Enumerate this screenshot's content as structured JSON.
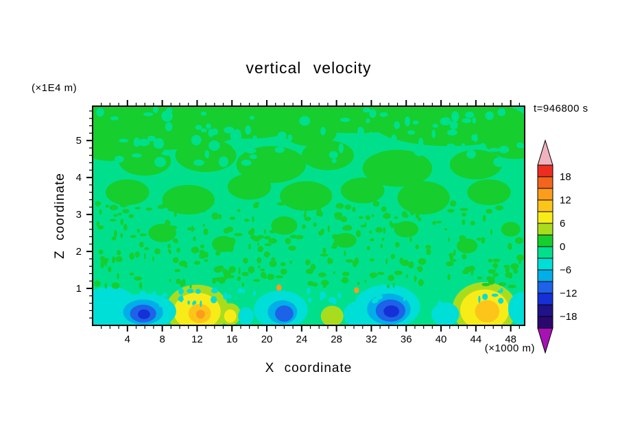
{
  "chart_data": {
    "type": "heatmap",
    "title": "vertical velocity",
    "xlabel": "X coordinate",
    "ylabel": "Z coordinate",
    "x_unit_label": "(×1000 m)",
    "y_unit_label": "(×1E4 m)",
    "time_annotation": "t=946800 s",
    "xlim": [
      0,
      49.6
    ],
    "ylim": [
      0,
      5.93
    ],
    "grid": false,
    "x_ticks": [
      4,
      8,
      12,
      16,
      20,
      24,
      28,
      32,
      36,
      40,
      44,
      48
    ],
    "y_ticks": [
      1,
      2,
      3,
      4,
      5
    ],
    "x_minor_step": 1,
    "y_minor_step": 0.2,
    "colorbar": {
      "position": "right",
      "over": {
        "min": 21,
        "color": "#F0B2BE"
      },
      "under": {
        "max": -21,
        "color": "#A812B4"
      },
      "bands": [
        {
          "max": 21,
          "min": 18,
          "color": "#ED2D21",
          "label_at_min": "18"
        },
        {
          "max": 18,
          "min": 15,
          "color": "#F3641D"
        },
        {
          "max": 15,
          "min": 12,
          "color": "#FB9C1C",
          "label_at_min": "12"
        },
        {
          "max": 12,
          "min": 9,
          "color": "#FDC41A"
        },
        {
          "max": 9,
          "min": 6,
          "color": "#F8EC18",
          "label_at_min": "6"
        },
        {
          "max": 6,
          "min": 3,
          "color": "#AADC1E"
        },
        {
          "max": 3,
          "min": 0,
          "color": "#16CE2E",
          "label_at_min": "0"
        },
        {
          "max": 0,
          "min": -3,
          "color": "#00E08C"
        },
        {
          "max": -3,
          "min": -6,
          "color": "#00DED8",
          "label_at_min": "−6"
        },
        {
          "max": -6,
          "min": -9,
          "color": "#00AEE8"
        },
        {
          "max": -9,
          "min": -12,
          "color": "#1E62E8",
          "label_at_min": "−12"
        },
        {
          "max": -12,
          "min": -15,
          "color": "#1430D6"
        },
        {
          "max": -15,
          "min": -18,
          "color": "#201288",
          "label_at_min": "−18"
        },
        {
          "max": -18,
          "min": -21,
          "color": "#2A0870"
        }
      ]
    },
    "field": {
      "background_value": -1.5,
      "features": [
        {
          "x": 8,
          "y": 5.5,
          "rx": 10,
          "ry": 0.75,
          "value": 1.5
        },
        {
          "x": 2,
          "y": 5.0,
          "rx": 4,
          "ry": 0.55,
          "value": 1.5
        },
        {
          "x": 18,
          "y": 5.55,
          "rx": 6,
          "ry": 0.5,
          "value": 1.5
        },
        {
          "x": 30,
          "y": 5.75,
          "rx": 9,
          "ry": 0.55,
          "value": 1.5
        },
        {
          "x": 41,
          "y": 5.5,
          "rx": 9,
          "ry": 0.65,
          "value": 1.5
        },
        {
          "x": 48.5,
          "y": 5.0,
          "rx": 3.5,
          "ry": 0.5,
          "value": 1.5
        },
        {
          "x": 25,
          "y": 5.2,
          "rx": 3,
          "ry": 0.35,
          "value": 1.5
        },
        {
          "x": 6,
          "y": 4.45,
          "rx": 3,
          "ry": 0.4,
          "value": 1.5
        },
        {
          "x": 13,
          "y": 4.6,
          "rx": 3.5,
          "ry": 0.45,
          "value": 1.5
        },
        {
          "x": 20.5,
          "y": 4.35,
          "rx": 4,
          "ry": 0.5,
          "value": 1.5
        },
        {
          "x": 27,
          "y": 4.6,
          "rx": 3,
          "ry": 0.4,
          "value": 1.5
        },
        {
          "x": 35,
          "y": 4.25,
          "rx": 4,
          "ry": 0.5,
          "value": 1.5
        },
        {
          "x": 44,
          "y": 4.35,
          "rx": 3,
          "ry": 0.4,
          "value": 1.5
        },
        {
          "x": 4,
          "y": 3.6,
          "rx": 2.5,
          "ry": 0.35,
          "value": 1.5
        },
        {
          "x": 11,
          "y": 3.4,
          "rx": 3,
          "ry": 0.4,
          "value": 1.5
        },
        {
          "x": 18,
          "y": 3.75,
          "rx": 2.5,
          "ry": 0.35,
          "value": 1.5
        },
        {
          "x": 24.5,
          "y": 3.5,
          "rx": 3,
          "ry": 0.4,
          "value": 1.5
        },
        {
          "x": 31,
          "y": 3.65,
          "rx": 2.5,
          "ry": 0.35,
          "value": 1.5
        },
        {
          "x": 38,
          "y": 3.45,
          "rx": 3,
          "ry": 0.45,
          "value": 1.5
        },
        {
          "x": 45.5,
          "y": 3.6,
          "rx": 2.5,
          "ry": 0.35,
          "value": 1.5
        },
        {
          "x": 8,
          "y": 2.5,
          "rx": 1.6,
          "ry": 0.25,
          "value": 1.5
        },
        {
          "x": 15,
          "y": 2.2,
          "rx": 1.3,
          "ry": 0.22,
          "value": 1.5
        },
        {
          "x": 22,
          "y": 2.7,
          "rx": 1.5,
          "ry": 0.25,
          "value": 1.5
        },
        {
          "x": 29,
          "y": 2.3,
          "rx": 1.3,
          "ry": 0.2,
          "value": 1.5
        },
        {
          "x": 36,
          "y": 2.6,
          "rx": 1.4,
          "ry": 0.22,
          "value": 1.5
        },
        {
          "x": 43,
          "y": 2.15,
          "rx": 1.2,
          "ry": 0.2,
          "value": 1.5
        },
        {
          "x": 48,
          "y": 2.6,
          "rx": 1.1,
          "ry": 0.2,
          "value": 1.5
        },
        {
          "x": 12,
          "y": 0.42,
          "rx": 3.6,
          "ry": 0.68,
          "value": 4.5
        },
        {
          "x": 45,
          "y": 0.45,
          "rx": 3.7,
          "ry": 0.72,
          "value": 4.5
        },
        {
          "x": 27.5,
          "y": 0.25,
          "rx": 1.3,
          "ry": 0.28,
          "value": 4.5
        },
        {
          "x": 15.8,
          "y": 0.3,
          "rx": 1.2,
          "ry": 0.3,
          "value": 4.5
        },
        {
          "x": 12,
          "y": 0.38,
          "rx": 2.7,
          "ry": 0.5,
          "value": 7.5
        },
        {
          "x": 45,
          "y": 0.42,
          "rx": 2.8,
          "ry": 0.55,
          "value": 7.5
        },
        {
          "x": 15.8,
          "y": 0.25,
          "rx": 0.7,
          "ry": 0.18,
          "value": 7.5
        },
        {
          "x": 12.3,
          "y": 0.32,
          "rx": 1.3,
          "ry": 0.26,
          "value": 10.5
        },
        {
          "x": 45.3,
          "y": 0.38,
          "rx": 1.4,
          "ry": 0.3,
          "value": 10.5
        },
        {
          "x": 21.4,
          "y": 1.02,
          "rx": 0.3,
          "ry": 0.09,
          "value": 13.5
        },
        {
          "x": 30.3,
          "y": 0.95,
          "rx": 0.28,
          "ry": 0.08,
          "value": 13.5
        },
        {
          "x": 12.4,
          "y": 0.3,
          "rx": 0.5,
          "ry": 0.12,
          "value": 13.5
        },
        {
          "x": 2,
          "y": 0.5,
          "rx": 3.2,
          "ry": 0.55,
          "value": -4.5
        },
        {
          "x": 6,
          "y": 0.38,
          "rx": 3.6,
          "ry": 0.48,
          "value": -4.5
        },
        {
          "x": 21.6,
          "y": 0.42,
          "rx": 3.1,
          "ry": 0.52,
          "value": -4.5
        },
        {
          "x": 33.8,
          "y": 0.5,
          "rx": 3.8,
          "ry": 0.6,
          "value": -4.5
        },
        {
          "x": 30.6,
          "y": 0.3,
          "rx": 1.8,
          "ry": 0.35,
          "value": -4.5
        },
        {
          "x": 40.5,
          "y": 0.3,
          "rx": 1.6,
          "ry": 0.32,
          "value": -4.5
        },
        {
          "x": 49.3,
          "y": 0.45,
          "rx": 1.6,
          "ry": 0.45,
          "value": -4.5
        },
        {
          "x": 17.6,
          "y": 0.25,
          "rx": 0.9,
          "ry": 0.24,
          "value": -4.5
        },
        {
          "x": 5.8,
          "y": 0.36,
          "rx": 2.3,
          "ry": 0.34,
          "value": -7.5
        },
        {
          "x": 21.8,
          "y": 0.36,
          "rx": 1.7,
          "ry": 0.32,
          "value": -7.5
        },
        {
          "x": 34,
          "y": 0.44,
          "rx": 2.5,
          "ry": 0.42,
          "value": -7.5
        },
        {
          "x": 5.8,
          "y": 0.32,
          "rx": 1.5,
          "ry": 0.24,
          "value": -10.5
        },
        {
          "x": 22,
          "y": 0.32,
          "rx": 1.05,
          "ry": 0.22,
          "value": -10.5
        },
        {
          "x": 34.2,
          "y": 0.4,
          "rx": 1.7,
          "ry": 0.3,
          "value": -10.5
        },
        {
          "x": 5.9,
          "y": 0.3,
          "rx": 0.7,
          "ry": 0.13,
          "value": -13.5
        },
        {
          "x": 34.3,
          "y": 0.38,
          "rx": 0.9,
          "ry": 0.16,
          "value": -13.5
        }
      ],
      "textures": [
        {
          "seed": 7,
          "count": 320,
          "x_min": 0.2,
          "x_max": 49.4,
          "y_min": 1.05,
          "y_max": 3.3,
          "rx_min": 0.1,
          "rx_max": 0.5,
          "ry_min": 0.035,
          "ry_max": 0.1,
          "value": 1.5
        },
        {
          "seed": 19,
          "count": 90,
          "x_min": 0.2,
          "x_max": 49.5,
          "y_min": 4.4,
          "y_max": 5.85,
          "rx_min": 0.2,
          "rx_max": 0.7,
          "ry_min": 0.05,
          "ry_max": 0.15,
          "value": -1.5
        },
        {
          "seed": 31,
          "count": 50,
          "x_min": 0.2,
          "x_max": 49.5,
          "y_min": 0.55,
          "y_max": 0.95,
          "rx_min": 0.1,
          "rx_max": 0.4,
          "ry_min": 0.04,
          "ry_max": 0.1,
          "value": -4.5
        }
      ]
    }
  }
}
